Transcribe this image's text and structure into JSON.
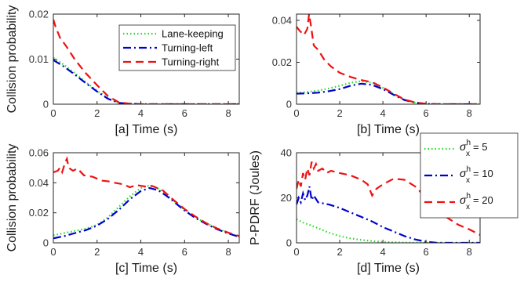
{
  "colors": {
    "lane": "#22dd22",
    "left": "#0000cc",
    "right": "#ee1111",
    "axis": "#262626"
  },
  "chart_data": [
    {
      "type": "line",
      "xlabel": "[a] Time (s)",
      "ylabel": "Collision probability",
      "xlim": [
        0,
        8.5
      ],
      "ylim": [
        0,
        0.02
      ],
      "xticks": [
        0,
        2,
        4,
        6,
        8
      ],
      "yticks": [
        0,
        0.01,
        0.02
      ],
      "xtick_labels": [
        "0",
        "2",
        "4",
        "6",
        "8"
      ],
      "ytick_labels": [
        "0",
        "0.01",
        "0.02"
      ],
      "legend": {
        "position": "top-right",
        "entries": [
          "Lane-keeping",
          "Turning-left",
          "Turning-right"
        ]
      },
      "series": [
        {
          "name": "Lane-keeping",
          "style": "dotted",
          "color": "#22dd22",
          "points": [
            [
              0,
              0.0103
            ],
            [
              0.5,
              0.0087
            ],
            [
              1,
              0.0068
            ],
            [
              1.5,
              0.0048
            ],
            [
              2,
              0.003
            ],
            [
              2.5,
              0.0013
            ],
            [
              3,
              0.0003
            ],
            [
              3.5,
              0.0001
            ],
            [
              4,
              0
            ],
            [
              8.5,
              0
            ]
          ]
        },
        {
          "name": "Turning-left",
          "style": "dashdot",
          "color": "#0000cc",
          "points": [
            [
              0,
              0.0098
            ],
            [
              0.5,
              0.0083
            ],
            [
              1,
              0.0065
            ],
            [
              1.5,
              0.0046
            ],
            [
              2,
              0.0028
            ],
            [
              2.5,
              0.0012
            ],
            [
              3,
              0.0003
            ],
            [
              3.5,
              0.0001
            ],
            [
              4,
              0
            ],
            [
              8.5,
              0
            ]
          ]
        },
        {
          "name": "Turning-right",
          "style": "dashed",
          "color": "#ee1111",
          "points": [
            [
              0,
              0.0188
            ],
            [
              0.1,
              0.0172
            ],
            [
              0.3,
              0.0148
            ],
            [
              0.6,
              0.0128
            ],
            [
              1,
              0.0098
            ],
            [
              1.5,
              0.0068
            ],
            [
              2,
              0.0042
            ],
            [
              2.5,
              0.0018
            ],
            [
              3,
              0.0004
            ],
            [
              3.5,
              0.0001
            ],
            [
              4,
              0
            ],
            [
              8.5,
              0
            ]
          ]
        }
      ]
    },
    {
      "type": "line",
      "xlabel": "[b] Time (s)",
      "ylabel": "",
      "xlim": [
        0,
        8.5
      ],
      "ylim": [
        0,
        0.043
      ],
      "xticks": [
        0,
        2,
        4,
        6,
        8
      ],
      "yticks": [
        0,
        0.02,
        0.04
      ],
      "xtick_labels": [
        "0",
        "2",
        "4",
        "6",
        "8"
      ],
      "ytick_labels": [
        "0",
        "0.02",
        "0.04"
      ],
      "series": [
        {
          "name": "Lane-keeping",
          "style": "dotted",
          "color": "#22dd22",
          "points": [
            [
              0,
              0.0055
            ],
            [
              0.5,
              0.0058
            ],
            [
              1,
              0.0065
            ],
            [
              1.5,
              0.0075
            ],
            [
              2,
              0.0088
            ],
            [
              2.5,
              0.0102
            ],
            [
              3,
              0.011
            ],
            [
              3.5,
              0.0102
            ],
            [
              4,
              0.0078
            ],
            [
              4.5,
              0.0048
            ],
            [
              5,
              0.0022
            ],
            [
              5.5,
              0.0008
            ],
            [
              6,
              0.0002
            ],
            [
              6.5,
              0
            ],
            [
              8.5,
              0
            ]
          ]
        },
        {
          "name": "Turning-left",
          "style": "dashdot",
          "color": "#0000cc",
          "points": [
            [
              0,
              0.005
            ],
            [
              0.5,
              0.0052
            ],
            [
              1,
              0.0055
            ],
            [
              1.5,
              0.0062
            ],
            [
              2,
              0.0072
            ],
            [
              2.5,
              0.0088
            ],
            [
              3,
              0.0098
            ],
            [
              3.5,
              0.0092
            ],
            [
              4,
              0.0072
            ],
            [
              4.5,
              0.0045
            ],
            [
              5,
              0.002
            ],
            [
              5.5,
              0.0007
            ],
            [
              6,
              0.0002
            ],
            [
              6.5,
              0
            ],
            [
              8.5,
              0
            ]
          ]
        },
        {
          "name": "Turning-right",
          "style": "dashed",
          "color": "#ee1111",
          "points": [
            [
              0,
              0.037
            ],
            [
              0.15,
              0.035
            ],
            [
              0.35,
              0.033
            ],
            [
              0.5,
              0.036
            ],
            [
              0.58,
              0.043
            ],
            [
              0.66,
              0.038
            ],
            [
              0.8,
              0.028
            ],
            [
              1,
              0.026
            ],
            [
              1.3,
              0.021
            ],
            [
              1.6,
              0.018
            ],
            [
              2,
              0.015
            ],
            [
              2.5,
              0.013
            ],
            [
              3,
              0.0115
            ],
            [
              3.5,
              0.0105
            ],
            [
              4,
              0.008
            ],
            [
              4.5,
              0.005
            ],
            [
              5,
              0.0022
            ],
            [
              5.5,
              0.0008
            ],
            [
              6,
              0.0002
            ],
            [
              6.5,
              0
            ],
            [
              8.5,
              0
            ]
          ]
        }
      ]
    },
    {
      "type": "line",
      "xlabel": "[c] Time (s)",
      "ylabel": "Collision probability",
      "xlim": [
        0,
        8.5
      ],
      "ylim": [
        0,
        0.06
      ],
      "xticks": [
        0,
        2,
        4,
        6,
        8
      ],
      "yticks": [
        0,
        0.02,
        0.04,
        0.06
      ],
      "xtick_labels": [
        "0",
        "2",
        "4",
        "6",
        "8"
      ],
      "ytick_labels": [
        "0",
        "0.02",
        "0.04",
        "0.06"
      ],
      "series": [
        {
          "name": "Lane-keeping",
          "style": "dotted",
          "color": "#22dd22",
          "points": [
            [
              0,
              0.005
            ],
            [
              0.5,
              0.0065
            ],
            [
              1,
              0.008
            ],
            [
              1.5,
              0.0095
            ],
            [
              2,
              0.012
            ],
            [
              2.5,
              0.017
            ],
            [
              3,
              0.024
            ],
            [
              3.5,
              0.031
            ],
            [
              4,
              0.0365
            ],
            [
              4.3,
              0.038
            ],
            [
              4.6,
              0.0375
            ],
            [
              5,
              0.0345
            ],
            [
              5.5,
              0.028
            ],
            [
              6,
              0.022
            ],
            [
              6.5,
              0.017
            ],
            [
              7,
              0.013
            ],
            [
              7.5,
              0.0095
            ],
            [
              8,
              0.0065
            ],
            [
              8.5,
              0.004
            ]
          ]
        },
        {
          "name": "Turning-left",
          "style": "dashdot",
          "color": "#0000cc",
          "points": [
            [
              0,
              0.003
            ],
            [
              0.5,
              0.0045
            ],
            [
              1,
              0.0065
            ],
            [
              1.5,
              0.0085
            ],
            [
              2,
              0.0115
            ],
            [
              2.5,
              0.016
            ],
            [
              3,
              0.022
            ],
            [
              3.5,
              0.029
            ],
            [
              4,
              0.0345
            ],
            [
              4.4,
              0.0365
            ],
            [
              4.8,
              0.035
            ],
            [
              5.2,
              0.031
            ],
            [
              5.5,
              0.0275
            ],
            [
              6,
              0.0215
            ],
            [
              6.5,
              0.0165
            ],
            [
              7,
              0.0125
            ],
            [
              7.5,
              0.009
            ],
            [
              8,
              0.0062
            ],
            [
              8.5,
              0.004
            ]
          ]
        },
        {
          "name": "Turning-right",
          "style": "dashed",
          "color": "#ee1111",
          "points": [
            [
              0,
              0.047
            ],
            [
              0.2,
              0.048
            ],
            [
              0.3,
              0.05
            ],
            [
              0.4,
              0.047
            ],
            [
              0.55,
              0.054
            ],
            [
              0.62,
              0.056
            ],
            [
              0.7,
              0.05
            ],
            [
              0.9,
              0.048
            ],
            [
              1.1,
              0.0495
            ],
            [
              1.4,
              0.045
            ],
            [
              1.8,
              0.044
            ],
            [
              2.2,
              0.0415
            ],
            [
              2.5,
              0.041
            ],
            [
              2.8,
              0.04
            ],
            [
              3.2,
              0.039
            ],
            [
              3.5,
              0.037
            ],
            [
              3.8,
              0.0385
            ],
            [
              4.2,
              0.0375
            ],
            [
              4.5,
              0.038
            ],
            [
              5,
              0.035
            ],
            [
              5.5,
              0.0285
            ],
            [
              6,
              0.0225
            ],
            [
              6.5,
              0.0175
            ],
            [
              7,
              0.013
            ],
            [
              7.5,
              0.0095
            ],
            [
              8,
              0.0068
            ],
            [
              8.5,
              0.0045
            ]
          ]
        }
      ]
    },
    {
      "type": "line",
      "xlabel": "[d] Time (s)",
      "ylabel": "P-PDRF (Joules)",
      "xlim": [
        0,
        8.5
      ],
      "ylim": [
        0,
        40
      ],
      "xticks": [
        0,
        2,
        4,
        6,
        8
      ],
      "yticks": [
        0,
        20,
        40
      ],
      "xtick_labels": [
        "0",
        "2",
        "4",
        "6",
        "8"
      ],
      "ytick_labels": [
        "0",
        "20",
        "40"
      ],
      "legend": {
        "position": "outside-right",
        "symbol": "σ",
        "sup": "h",
        "sub": "x",
        "entries": [
          "5",
          "10",
          "20"
        ]
      },
      "series": [
        {
          "name": "5",
          "style": "dotted",
          "color": "#22dd22",
          "points": [
            [
              0,
              10.5
            ],
            [
              0.3,
              9
            ],
            [
              0.6,
              8
            ],
            [
              1,
              6.5
            ],
            [
              1.5,
              4.5
            ],
            [
              2,
              3
            ],
            [
              2.5,
              2
            ],
            [
              3,
              1.3
            ],
            [
              3.5,
              0.8
            ],
            [
              4,
              0.4
            ],
            [
              5,
              0.1
            ],
            [
              6,
              0
            ],
            [
              8.5,
              0
            ]
          ]
        },
        {
          "name": "10",
          "style": "dashdot",
          "color": "#0000cc",
          "points": [
            [
              0,
              17
            ],
            [
              0.1,
              20
            ],
            [
              0.2,
              18
            ],
            [
              0.3,
              22
            ],
            [
              0.4,
              19
            ],
            [
              0.5,
              21
            ],
            [
              0.6,
              25
            ],
            [
              0.7,
              19
            ],
            [
              0.8,
              21
            ],
            [
              1,
              18
            ],
            [
              1.5,
              17
            ],
            [
              2,
              15.5
            ],
            [
              2.5,
              13.5
            ],
            [
              3,
              11.5
            ],
            [
              3.5,
              9.5
            ],
            [
              4,
              7
            ],
            [
              4.5,
              5
            ],
            [
              5,
              3
            ],
            [
              5.5,
              1.5
            ],
            [
              6,
              0.5
            ],
            [
              6.5,
              0
            ],
            [
              8.5,
              0
            ]
          ]
        },
        {
          "name": "20",
          "style": "dashed",
          "color": "#ee1111",
          "points": [
            [
              0,
              24
            ],
            [
              0.1,
              28
            ],
            [
              0.2,
              25
            ],
            [
              0.3,
              31
            ],
            [
              0.4,
              28
            ],
            [
              0.5,
              33
            ],
            [
              0.6,
              30
            ],
            [
              0.7,
              36
            ],
            [
              0.8,
              33
            ],
            [
              0.9,
              35
            ],
            [
              1,
              32
            ],
            [
              1.2,
              33
            ],
            [
              1.4,
              31
            ],
            [
              1.6,
              32
            ],
            [
              2,
              31
            ],
            [
              2.5,
              30
            ],
            [
              3,
              28
            ],
            [
              3.3,
              26
            ],
            [
              3.5,
              21
            ],
            [
              3.7,
              24
            ],
            [
              4,
              26
            ],
            [
              4.5,
              28.5
            ],
            [
              5,
              28
            ],
            [
              5.5,
              25
            ],
            [
              6,
              20
            ],
            [
              6.5,
              15
            ],
            [
              7,
              11
            ],
            [
              7.5,
              8
            ],
            [
              8,
              6
            ],
            [
              8.5,
              3.5
            ]
          ]
        }
      ]
    }
  ]
}
